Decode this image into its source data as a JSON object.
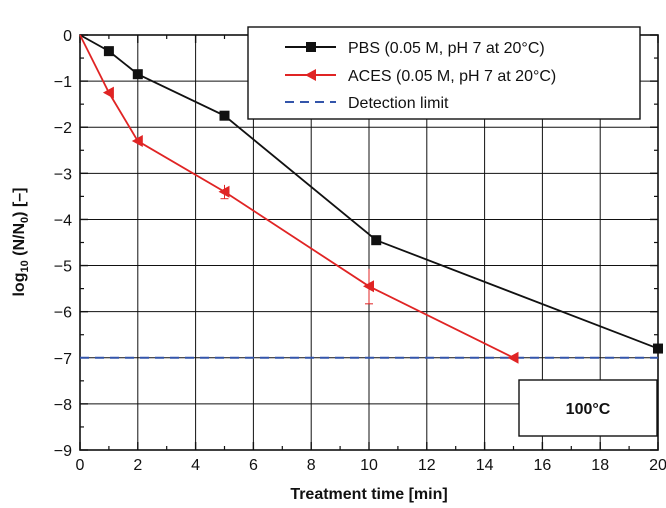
{
  "chart_data": {
    "type": "line",
    "xlabel": "Treatment time [min]",
    "ylabel": "log",
    "ylabel_sub": "10",
    "ylabel_rest": " (N/N",
    "ylabel_sub2": "0",
    "ylabel_end": ") [–]",
    "xlim": [
      0,
      20
    ],
    "ylim": [
      -9,
      0
    ],
    "xticks": [
      0,
      2,
      4,
      6,
      8,
      10,
      12,
      14,
      16,
      18,
      20
    ],
    "yticks": [
      0,
      -1,
      -2,
      -3,
      -4,
      -5,
      -6,
      -7,
      -8,
      -9
    ],
    "ytick_labels": [
      "0",
      "−1",
      "−2",
      "−3",
      "−4",
      "−5",
      "−6",
      "−7",
      "−8",
      "−9"
    ],
    "grid": true,
    "legend_position": "top-right",
    "annotation": "100°C",
    "series": [
      {
        "name": "PBS (0.05 M, pH 7 at 20°C)",
        "color": "#111111",
        "marker": "square",
        "x": [
          0,
          1,
          2,
          5,
          10.25,
          20
        ],
        "y": [
          0,
          -0.35,
          -0.85,
          -1.75,
          -4.45,
          -6.8
        ]
      },
      {
        "name": "ACES (0.05 M, pH 7 at 20°C)",
        "color": "#e02424",
        "marker": "triangle-left",
        "x": [
          0,
          1,
          2,
          5,
          10,
          15
        ],
        "y": [
          0,
          -1.25,
          -2.3,
          -3.4,
          -5.45,
          -7.0
        ],
        "error": [
          0,
          0,
          0,
          0.15,
          0.38,
          0
        ]
      }
    ],
    "detection_limit": {
      "name": "Detection limit",
      "y": -7,
      "color": "#3355aa"
    }
  }
}
